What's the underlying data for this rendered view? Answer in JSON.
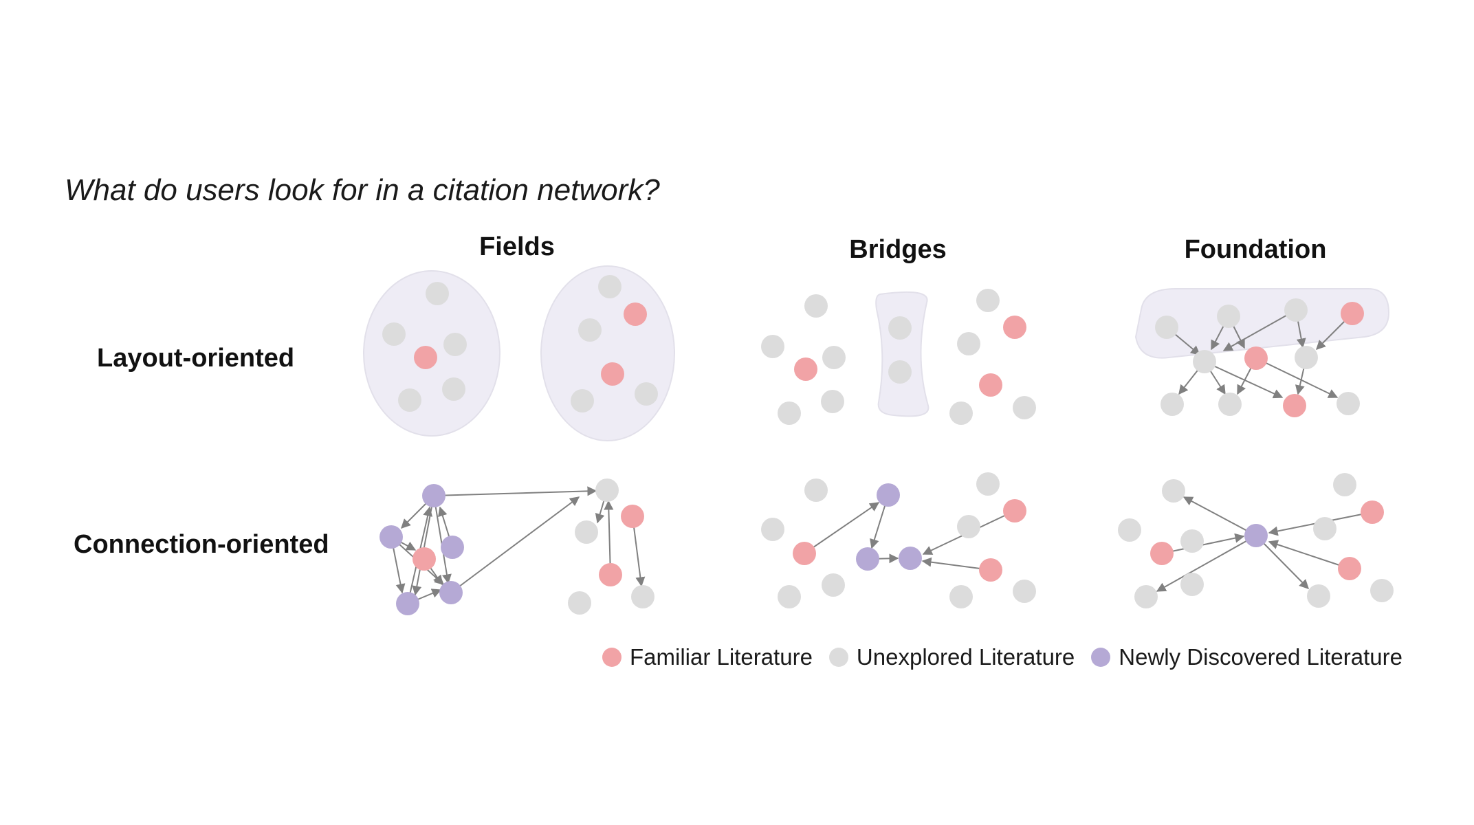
{
  "question": "What do users look for in a citation network?",
  "columns": {
    "fields": "Fields",
    "bridges": "Bridges",
    "foundation": "Foundation"
  },
  "rows": {
    "layout": "Layout-oriented",
    "connection": "Connection-oriented"
  },
  "legend": [
    {
      "label": "Familiar Literature",
      "color": "#f1a3a6"
    },
    {
      "label": "Unexplored Literature",
      "color": "#dcdcdc"
    },
    {
      "label": "Newly Discovered Literature",
      "color": "#b5a9d5"
    }
  ],
  "colors": {
    "familiar": "#f1a3a6",
    "unexplored": "#dcdcdc",
    "newly": "#b5a9d5",
    "cluster_fill": "#eeecf5",
    "edge": "#808080"
  }
}
